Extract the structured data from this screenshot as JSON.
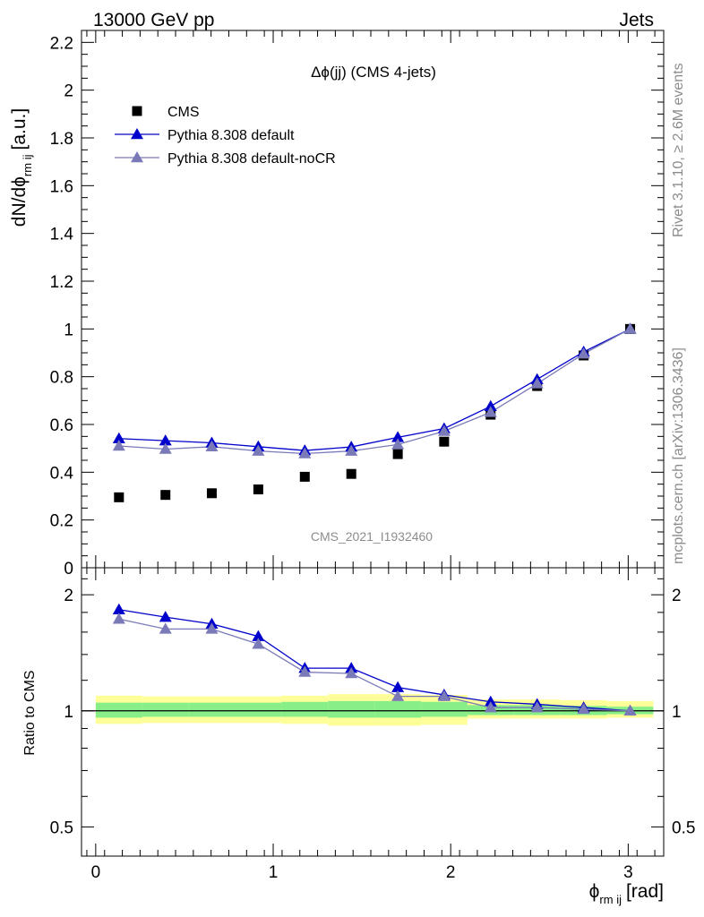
{
  "header": {
    "left": "13000 GeV pp",
    "right": "Jets"
  },
  "side_text": {
    "rivet": "Rivet 3.1.10, ≥ 2.6M events",
    "mcplots": "mcplots.cern.ch [arXiv:1306.3436]"
  },
  "analysis_id": "CMS_2021_I1932460",
  "chart_data": [
    {
      "type": "scatter",
      "title": "Δϕ(jj) (CMS 4-jets)",
      "ylabel": {
        "main": "dN/dϕ",
        "sub": "rm ij",
        "unit": "[a.u.]"
      },
      "ylim": [
        0,
        2.25
      ],
      "xlim": [
        -0.08,
        3.2
      ],
      "yticks": [
        0,
        0.2,
        0.4,
        0.6,
        0.8,
        1,
        1.2,
        1.4,
        1.6,
        1.8,
        2,
        2.2
      ],
      "ytick_labels": [
        "0",
        "0.2",
        "0.4",
        "0.6",
        "0.8",
        "1",
        "1.2",
        "1.4",
        "1.6",
        "1.8",
        "2",
        "2.2"
      ],
      "x": [
        0.131,
        0.393,
        0.654,
        0.916,
        1.178,
        1.44,
        1.702,
        1.963,
        2.225,
        2.487,
        2.749,
        3.011
      ],
      "legend_position": "top-left",
      "series": [
        {
          "name": "CMS",
          "marker": "square",
          "color": "#000000",
          "values": [
            0.295,
            0.305,
            0.312,
            0.328,
            0.381,
            0.393,
            0.476,
            0.528,
            0.641,
            0.761,
            0.889,
            1.0
          ]
        },
        {
          "name": "Pythia 8.308 default",
          "marker": "triangle",
          "color": "#0000cc",
          "values": [
            0.541,
            0.532,
            0.523,
            0.507,
            0.491,
            0.506,
            0.546,
            0.583,
            0.676,
            0.789,
            0.904,
            1.0
          ]
        },
        {
          "name": "Pythia 8.308 default-noCR",
          "marker": "triangle",
          "color": "#7a7ab8",
          "values": [
            0.51,
            0.497,
            0.507,
            0.489,
            0.478,
            0.489,
            0.516,
            0.572,
            0.651,
            0.771,
            0.896,
            1.0
          ]
        }
      ]
    },
    {
      "type": "line",
      "ylabel": "Ratio to CMS",
      "ylim": [
        0.42,
        2.35
      ],
      "yscale": "log",
      "yticks": [
        0.5,
        1,
        2
      ],
      "ytick_labels": [
        "0.5",
        "1",
        "2"
      ],
      "xlabel": {
        "main": "ϕ",
        "sub": "rm ij",
        "unit": "[rad]"
      },
      "xticks": [
        0,
        1,
        2,
        3
      ],
      "xtick_labels": [
        "0",
        "1",
        "2",
        "3"
      ],
      "bin_edges": [
        0,
        0.262,
        0.524,
        0.785,
        1.047,
        1.309,
        1.571,
        1.833,
        2.094,
        2.356,
        2.618,
        2.88,
        3.142
      ],
      "band_inner": [
        [
          0.96,
          1.05
        ],
        [
          0.965,
          1.05
        ],
        [
          0.965,
          1.05
        ],
        [
          0.965,
          1.05
        ],
        [
          0.965,
          1.055
        ],
        [
          0.96,
          1.06
        ],
        [
          0.96,
          1.06
        ],
        [
          0.965,
          1.055
        ],
        [
          0.975,
          1.035
        ],
        [
          0.975,
          1.035
        ],
        [
          0.975,
          1.03
        ],
        [
          0.98,
          1.025
        ]
      ],
      "band_outer": [
        [
          0.925,
          1.095
        ],
        [
          0.93,
          1.09
        ],
        [
          0.93,
          1.09
        ],
        [
          0.93,
          1.09
        ],
        [
          0.925,
          1.095
        ],
        [
          0.915,
          1.105
        ],
        [
          0.915,
          1.105
        ],
        [
          0.92,
          1.1
        ],
        [
          0.955,
          1.07
        ],
        [
          0.955,
          1.07
        ],
        [
          0.955,
          1.065
        ],
        [
          0.96,
          1.06
        ]
      ],
      "band_colors": {
        "inner": "#88ee88",
        "outer": "#ffff99"
      },
      "series": [
        {
          "name": "Pythia 8.308 default",
          "color": "#0000cc",
          "values": [
            1.83,
            1.75,
            1.68,
            1.56,
            1.29,
            1.29,
            1.15,
            1.1,
            1.055,
            1.04,
            1.02,
            1.0
          ]
        },
        {
          "name": "Pythia 8.308 default-noCR",
          "color": "#7a7ab8",
          "values": [
            1.73,
            1.63,
            1.63,
            1.49,
            1.26,
            1.25,
            1.09,
            1.09,
            1.02,
            1.02,
            1.01,
            1.0
          ]
        }
      ]
    }
  ]
}
